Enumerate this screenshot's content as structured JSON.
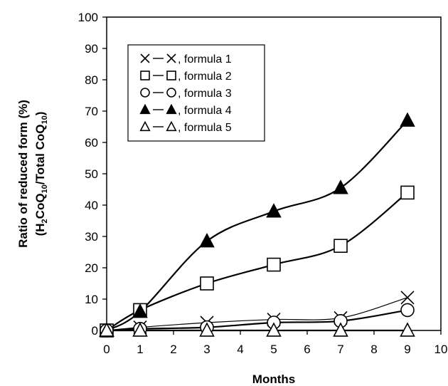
{
  "chart_data": {
    "type": "line",
    "xlabel": "Months",
    "ylabel_line1": "Ratio of reduced form (%)",
    "ylabel_line2": {
      "open": "(H",
      "s1": "2",
      "mid": "CoQ",
      "s2": "10",
      "mid2": "/Total CoQ",
      "s3": "10",
      "close": ")"
    },
    "xlim": [
      0,
      10
    ],
    "ylim": [
      0,
      100
    ],
    "xticks": [
      0,
      1,
      2,
      3,
      4,
      5,
      6,
      7,
      8,
      9,
      10
    ],
    "yticks": [
      0,
      10,
      20,
      30,
      40,
      50,
      60,
      70,
      80,
      90,
      100
    ],
    "grid": false,
    "legend_position": "top-left",
    "series": [
      {
        "name": "formula 1",
        "marker": "x",
        "line": "thin",
        "x": [
          0,
          1,
          3,
          5,
          7,
          9
        ],
        "values": [
          0,
          1,
          2.5,
          3.5,
          4,
          10.5
        ]
      },
      {
        "name": "formula 2",
        "marker": "square-open",
        "line": "thick",
        "x": [
          0,
          1,
          3,
          5,
          7,
          9
        ],
        "values": [
          0,
          6.5,
          15,
          21,
          27,
          44
        ]
      },
      {
        "name": "formula 3",
        "marker": "circle-open",
        "line": "thick",
        "x": [
          0,
          1,
          3,
          5,
          7,
          9
        ],
        "values": [
          0,
          0.5,
          1,
          2.5,
          3,
          6.5
        ]
      },
      {
        "name": "formula 4",
        "marker": "triangle-filled",
        "line": "thick",
        "x": [
          0,
          1,
          3,
          5,
          7,
          9
        ],
        "values": [
          0,
          6,
          28.5,
          38,
          45.5,
          67
        ]
      },
      {
        "name": "formula 5",
        "marker": "triangle-open",
        "line": "thick",
        "x": [
          0,
          1,
          3,
          5,
          7,
          9
        ],
        "values": [
          0,
          0,
          0,
          0,
          0,
          0
        ]
      }
    ],
    "legend_entries": [
      {
        "label": ", formula 1",
        "marker": "x"
      },
      {
        "label": ", formula 2",
        "marker": "square-open"
      },
      {
        "label": ", formula 3",
        "marker": "circle-open"
      },
      {
        "label": ", formula 4",
        "marker": "triangle-filled"
      },
      {
        "label": ", formula 5",
        "marker": "triangle-open"
      }
    ],
    "colors": {
      "ink": "#000000",
      "background": "#ffffff"
    }
  }
}
